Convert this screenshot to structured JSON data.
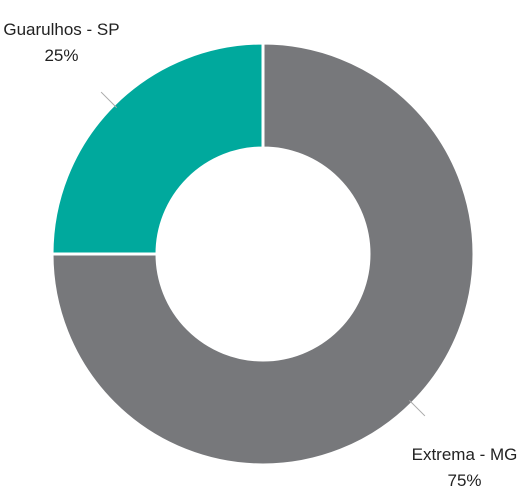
{
  "chart_data": {
    "type": "pie",
    "categories": [
      "Extrema - MG",
      "Guarulhos - SP"
    ],
    "values": [
      75,
      25
    ],
    "value_labels": [
      "75%",
      "25%"
    ],
    "colors": [
      "#77787b",
      "#00a99d"
    ],
    "donut": true
  }
}
